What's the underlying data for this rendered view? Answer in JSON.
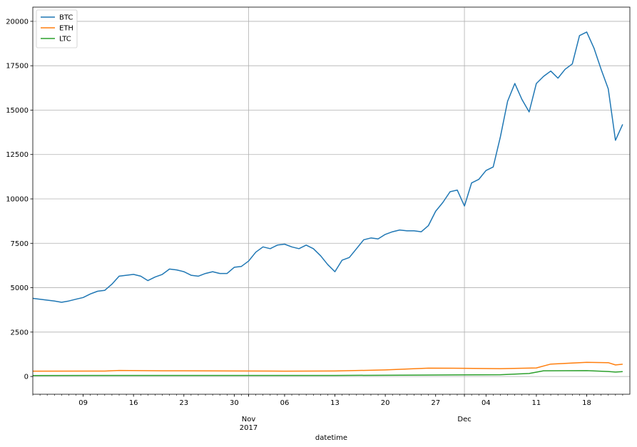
{
  "chart_data": {
    "type": "line",
    "title": "",
    "xlabel": "datetime",
    "ylabel": "",
    "ylim": [
      -1000,
      20800
    ],
    "xlim": [
      "2017-10-02",
      "2017-12-23"
    ],
    "grid": true,
    "legend_position": "top-left",
    "y_ticks": [
      {
        "value": 0,
        "label": "0"
      },
      {
        "value": 2500,
        "label": "2500"
      },
      {
        "value": 5000,
        "label": "5000"
      },
      {
        "value": 7500,
        "label": "7500"
      },
      {
        "value": 10000,
        "label": "10000"
      },
      {
        "value": 12500,
        "label": "12500"
      },
      {
        "value": 15000,
        "label": "15000"
      },
      {
        "value": 17500,
        "label": "17500"
      },
      {
        "value": 20000,
        "label": "20000"
      }
    ],
    "x_minor_ticks": [
      {
        "date": "2017-10-09",
        "label": "09"
      },
      {
        "date": "2017-10-16",
        "label": "16"
      },
      {
        "date": "2017-10-23",
        "label": "23"
      },
      {
        "date": "2017-10-30",
        "label": "30"
      },
      {
        "date": "2017-11-06",
        "label": "06"
      },
      {
        "date": "2017-11-13",
        "label": "13"
      },
      {
        "date": "2017-11-20",
        "label": "20"
      },
      {
        "date": "2017-11-27",
        "label": "27"
      },
      {
        "date": "2017-12-04",
        "label": "04"
      },
      {
        "date": "2017-12-11",
        "label": "11"
      },
      {
        "date": "2017-12-18",
        "label": "18"
      }
    ],
    "x_major_ticks": [
      {
        "date": "2017-11-01",
        "label": "Nov",
        "sublabel": "2017"
      },
      {
        "date": "2017-12-01",
        "label": "Dec",
        "sublabel": ""
      }
    ],
    "series": [
      {
        "name": "BTC",
        "color": "#1f77b4",
        "points": [
          [
            "2017-10-02",
            4400
          ],
          [
            "2017-10-03",
            4350
          ],
          [
            "2017-10-04",
            4300
          ],
          [
            "2017-10-05",
            4250
          ],
          [
            "2017-10-06",
            4180
          ],
          [
            "2017-10-07",
            4250
          ],
          [
            "2017-10-08",
            4350
          ],
          [
            "2017-10-09",
            4450
          ],
          [
            "2017-10-10",
            4650
          ],
          [
            "2017-10-11",
            4800
          ],
          [
            "2017-10-12",
            4850
          ],
          [
            "2017-10-13",
            5200
          ],
          [
            "2017-10-14",
            5650
          ],
          [
            "2017-10-15",
            5700
          ],
          [
            "2017-10-16",
            5750
          ],
          [
            "2017-10-17",
            5650
          ],
          [
            "2017-10-18",
            5400
          ],
          [
            "2017-10-19",
            5600
          ],
          [
            "2017-10-20",
            5750
          ],
          [
            "2017-10-21",
            6050
          ],
          [
            "2017-10-22",
            6000
          ],
          [
            "2017-10-23",
            5900
          ],
          [
            "2017-10-24",
            5700
          ],
          [
            "2017-10-25",
            5650
          ],
          [
            "2017-10-26",
            5800
          ],
          [
            "2017-10-27",
            5900
          ],
          [
            "2017-10-28",
            5800
          ],
          [
            "2017-10-29",
            5800
          ],
          [
            "2017-10-30",
            6150
          ],
          [
            "2017-10-31",
            6200
          ],
          [
            "2017-11-01",
            6500
          ],
          [
            "2017-11-02",
            7000
          ],
          [
            "2017-11-03",
            7300
          ],
          [
            "2017-11-04",
            7200
          ],
          [
            "2017-11-05",
            7400
          ],
          [
            "2017-11-06",
            7450
          ],
          [
            "2017-11-07",
            7300
          ],
          [
            "2017-11-08",
            7200
          ],
          [
            "2017-11-09",
            7400
          ],
          [
            "2017-11-10",
            7200
          ],
          [
            "2017-11-11",
            6800
          ],
          [
            "2017-11-12",
            6300
          ],
          [
            "2017-11-13",
            5900
          ],
          [
            "2017-11-14",
            6550
          ],
          [
            "2017-11-15",
            6700
          ],
          [
            "2017-11-16",
            7200
          ],
          [
            "2017-11-17",
            7700
          ],
          [
            "2017-11-18",
            7800
          ],
          [
            "2017-11-19",
            7750
          ],
          [
            "2017-11-20",
            8000
          ],
          [
            "2017-11-21",
            8150
          ],
          [
            "2017-11-22",
            8250
          ],
          [
            "2017-11-23",
            8200
          ],
          [
            "2017-11-24",
            8200
          ],
          [
            "2017-11-25",
            8150
          ],
          [
            "2017-11-26",
            8500
          ],
          [
            "2017-11-27",
            9300
          ],
          [
            "2017-11-28",
            9800
          ],
          [
            "2017-11-29",
            10400
          ],
          [
            "2017-11-30",
            10500
          ],
          [
            "2017-12-01",
            9600
          ],
          [
            "2017-12-02",
            10900
          ],
          [
            "2017-12-03",
            11100
          ],
          [
            "2017-12-04",
            11600
          ],
          [
            "2017-12-05",
            11800
          ],
          [
            "2017-12-06",
            13500
          ],
          [
            "2017-12-07",
            15500
          ],
          [
            "2017-12-08",
            16500
          ],
          [
            "2017-12-09",
            15600
          ],
          [
            "2017-12-10",
            14900
          ],
          [
            "2017-12-11",
            16500
          ],
          [
            "2017-12-12",
            16900
          ],
          [
            "2017-12-13",
            17200
          ],
          [
            "2017-12-14",
            16800
          ],
          [
            "2017-12-15",
            17300
          ],
          [
            "2017-12-16",
            17600
          ],
          [
            "2017-12-17",
            19200
          ],
          [
            "2017-12-18",
            19400
          ],
          [
            "2017-12-19",
            18500
          ],
          [
            "2017-12-20",
            17300
          ],
          [
            "2017-12-21",
            16200
          ],
          [
            "2017-12-22",
            13300
          ],
          [
            "2017-12-23",
            14200
          ]
        ]
      },
      {
        "name": "ETH",
        "color": "#ff7f0e",
        "points": [
          [
            "2017-10-02",
            300
          ],
          [
            "2017-10-12",
            305
          ],
          [
            "2017-10-14",
            340
          ],
          [
            "2017-10-20",
            320
          ],
          [
            "2017-10-30",
            310
          ],
          [
            "2017-11-06",
            300
          ],
          [
            "2017-11-13",
            310
          ],
          [
            "2017-11-20",
            370
          ],
          [
            "2017-11-26",
            470
          ],
          [
            "2017-12-01",
            460
          ],
          [
            "2017-12-06",
            440
          ],
          [
            "2017-12-11",
            480
          ],
          [
            "2017-12-13",
            700
          ],
          [
            "2017-12-18",
            800
          ],
          [
            "2017-12-21",
            780
          ],
          [
            "2017-12-22",
            650
          ],
          [
            "2017-12-23",
            690
          ]
        ]
      },
      {
        "name": "LTC",
        "color": "#2ca02c",
        "points": [
          [
            "2017-10-02",
            55
          ],
          [
            "2017-10-14",
            60
          ],
          [
            "2017-10-30",
            58
          ],
          [
            "2017-11-13",
            60
          ],
          [
            "2017-11-25",
            80
          ],
          [
            "2017-12-06",
            100
          ],
          [
            "2017-12-10",
            170
          ],
          [
            "2017-12-12",
            320
          ],
          [
            "2017-12-18",
            330
          ],
          [
            "2017-12-21",
            280
          ],
          [
            "2017-12-22",
            250
          ],
          [
            "2017-12-23",
            275
          ]
        ]
      }
    ]
  }
}
